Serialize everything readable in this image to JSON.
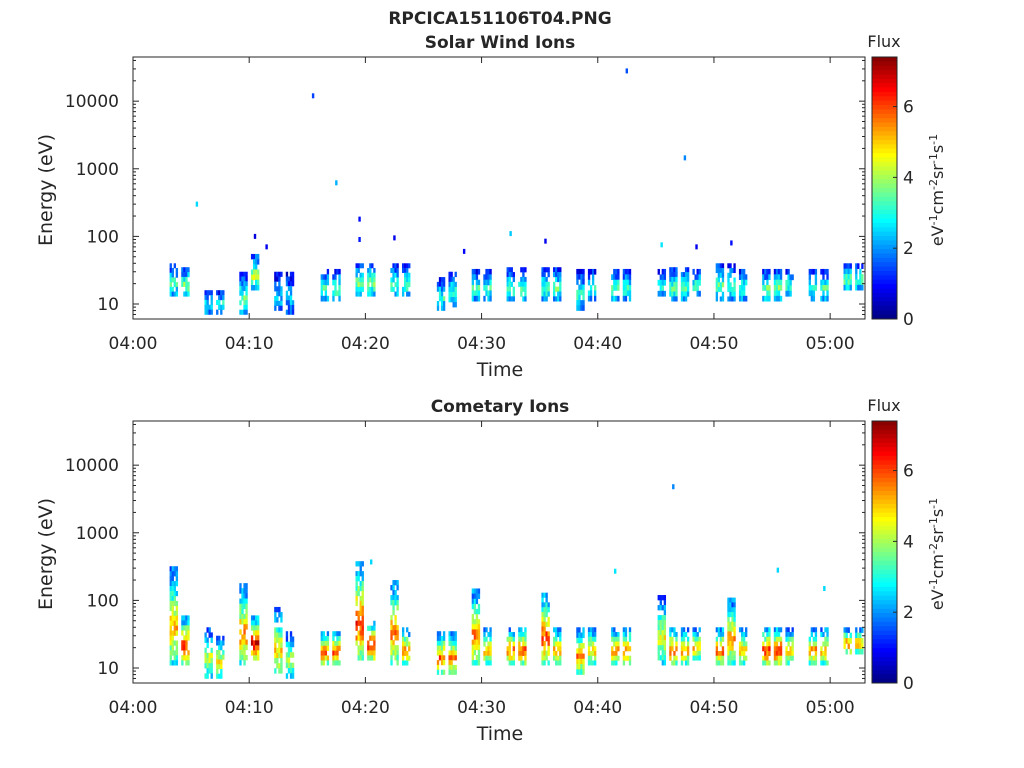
{
  "figure_title": "RPCICA151106T04.PNG",
  "chart_data": [
    {
      "type": "heatmap",
      "title": "Solar Wind Ions",
      "xlabel": "Time",
      "ylabel": "Energy (eV)",
      "x_ticks": [
        "04:00",
        "04:10",
        "04:20",
        "04:30",
        "04:40",
        "04:50",
        "05:00"
      ],
      "y_ticks": [
        "10",
        "100",
        "1000",
        "10000"
      ],
      "xlim": [
        "04:00",
        "05:03"
      ],
      "ylim": [
        6,
        45000
      ],
      "y_scale": "log",
      "colorbar": {
        "label": "Flux",
        "unit": "eV-1cm-2sr-1s-1",
        "ticks": [
          "0",
          "2",
          "4",
          "6"
        ],
        "range": [
          0,
          7.4
        ],
        "colormap": "jet"
      },
      "bursts": [
        {
          "t": "04:03",
          "emin": 13,
          "emax": 40,
          "level": 3.4
        },
        {
          "t": "04:04",
          "emin": 13,
          "emax": 35,
          "level": 3.9
        },
        {
          "t": "04:06",
          "emin": 7,
          "emax": 16,
          "level": 3.0
        },
        {
          "t": "04:07",
          "emin": 7,
          "emax": 16,
          "level": 3.2
        },
        {
          "t": "04:09",
          "emin": 7,
          "emax": 30,
          "level": 3.5
        },
        {
          "t": "04:10",
          "emin": 16,
          "emax": 55,
          "level": 4.2
        },
        {
          "t": "04:12",
          "emin": 8,
          "emax": 30,
          "level": 2.6
        },
        {
          "t": "04:13",
          "emin": 7,
          "emax": 30,
          "level": 2.4
        },
        {
          "t": "04:16",
          "emin": 11,
          "emax": 33,
          "level": 3.4
        },
        {
          "t": "04:17",
          "emin": 11,
          "emax": 33,
          "level": 3.6
        },
        {
          "t": "04:19",
          "emin": 13,
          "emax": 40,
          "level": 3.8
        },
        {
          "t": "04:20",
          "emin": 13,
          "emax": 40,
          "level": 3.9
        },
        {
          "t": "04:22",
          "emin": 13,
          "emax": 40,
          "level": 3.4
        },
        {
          "t": "04:23",
          "emin": 13,
          "emax": 40,
          "level": 3.6
        },
        {
          "t": "04:26",
          "emin": 8,
          "emax": 25,
          "level": 3.2
        },
        {
          "t": "04:27",
          "emin": 9,
          "emax": 30,
          "level": 3.5
        },
        {
          "t": "04:29",
          "emin": 11,
          "emax": 33,
          "level": 3.3
        },
        {
          "t": "04:30",
          "emin": 11,
          "emax": 33,
          "level": 3.4
        },
        {
          "t": "04:32",
          "emin": 11,
          "emax": 35,
          "level": 3.5
        },
        {
          "t": "04:33",
          "emin": 11,
          "emax": 35,
          "level": 3.6
        },
        {
          "t": "04:35",
          "emin": 11,
          "emax": 35,
          "level": 3.4
        },
        {
          "t": "04:36",
          "emin": 11,
          "emax": 35,
          "level": 3.5
        },
        {
          "t": "04:38",
          "emin": 8,
          "emax": 33,
          "level": 3.1
        },
        {
          "t": "04:39",
          "emin": 11,
          "emax": 33,
          "level": 3.3
        },
        {
          "t": "04:41",
          "emin": 11,
          "emax": 33,
          "level": 3.5
        },
        {
          "t": "04:42",
          "emin": 11,
          "emax": 33,
          "level": 3.4
        },
        {
          "t": "04:45",
          "emin": 13,
          "emax": 33,
          "level": 3.0
        },
        {
          "t": "04:46",
          "emin": 11,
          "emax": 35,
          "level": 3.5
        },
        {
          "t": "04:47",
          "emin": 11,
          "emax": 35,
          "level": 3.4
        },
        {
          "t": "04:48",
          "emin": 13,
          "emax": 33,
          "level": 3.3
        },
        {
          "t": "04:50",
          "emin": 11,
          "emax": 40,
          "level": 3.6
        },
        {
          "t": "04:51",
          "emin": 11,
          "emax": 40,
          "level": 3.4
        },
        {
          "t": "04:52",
          "emin": 11,
          "emax": 33,
          "level": 3.3
        },
        {
          "t": "04:54",
          "emin": 11,
          "emax": 33,
          "level": 3.7
        },
        {
          "t": "04:55",
          "emin": 11,
          "emax": 33,
          "level": 3.8
        },
        {
          "t": "04:56",
          "emin": 13,
          "emax": 33,
          "level": 3.5
        },
        {
          "t": "04:58",
          "emin": 11,
          "emax": 33,
          "level": 3.3
        },
        {
          "t": "04:59",
          "emin": 11,
          "emax": 33,
          "level": 3.4
        },
        {
          "t": "05:01",
          "emin": 16,
          "emax": 40,
          "level": 3.6
        },
        {
          "t": "05:02",
          "emin": 16,
          "emax": 40,
          "level": 3.5
        }
      ],
      "points": [
        {
          "t": "04:05",
          "e": 300,
          "level": 2.5
        },
        {
          "t": "04:10",
          "e": 100,
          "level": 0.7
        },
        {
          "t": "04:11",
          "e": 70,
          "level": 0.8
        },
        {
          "t": "04:15",
          "e": 12000,
          "level": 1.4
        },
        {
          "t": "04:17",
          "e": 620,
          "level": 2.2
        },
        {
          "t": "04:19",
          "e": 180,
          "level": 1.0
        },
        {
          "t": "04:19",
          "e": 90,
          "level": 1.1
        },
        {
          "t": "04:22",
          "e": 95,
          "level": 0.8
        },
        {
          "t": "04:28",
          "e": 60,
          "level": 0.9
        },
        {
          "t": "04:32",
          "e": 110,
          "level": 2.4
        },
        {
          "t": "04:35",
          "e": 85,
          "level": 0.8
        },
        {
          "t": "04:42",
          "e": 28000,
          "level": 1.5
        },
        {
          "t": "04:45",
          "e": 75,
          "level": 2.6
        },
        {
          "t": "04:47",
          "e": 1450,
          "level": 1.9
        },
        {
          "t": "04:48",
          "e": 70,
          "level": 0.8
        },
        {
          "t": "04:51",
          "e": 80,
          "level": 1.0
        }
      ]
    },
    {
      "type": "heatmap",
      "title": "Cometary Ions",
      "xlabel": "Time",
      "ylabel": "Energy (eV)",
      "x_ticks": [
        "04:00",
        "04:10",
        "04:20",
        "04:30",
        "04:40",
        "04:50",
        "05:00"
      ],
      "y_ticks": [
        "10",
        "100",
        "1000",
        "10000"
      ],
      "xlim": [
        "04:00",
        "05:03"
      ],
      "ylim": [
        6,
        45000
      ],
      "y_scale": "log",
      "colorbar": {
        "label": "Flux",
        "unit": "eV-1cm-2sr-1s-1",
        "ticks": [
          "0",
          "2",
          "4",
          "6"
        ],
        "range": [
          0,
          7.4
        ],
        "colormap": "jet"
      },
      "bursts": [
        {
          "t": "04:03",
          "emin": 11,
          "emax": 320,
          "level": 5.2
        },
        {
          "t": "04:04",
          "emin": 11,
          "emax": 60,
          "level": 6.3
        },
        {
          "t": "04:06",
          "emin": 7,
          "emax": 40,
          "level": 4.4
        },
        {
          "t": "04:07",
          "emin": 7,
          "emax": 30,
          "level": 4.7
        },
        {
          "t": "04:09",
          "emin": 11,
          "emax": 180,
          "level": 5.6
        },
        {
          "t": "04:10",
          "emin": 13,
          "emax": 60,
          "level": 6.8
        },
        {
          "t": "04:12",
          "emin": 7,
          "emax": 80,
          "level": 5.0
        },
        {
          "t": "04:13",
          "emin": 7,
          "emax": 35,
          "level": 4.4
        },
        {
          "t": "04:16",
          "emin": 11,
          "emax": 35,
          "level": 6.1
        },
        {
          "t": "04:17",
          "emin": 11,
          "emax": 35,
          "level": 6.0
        },
        {
          "t": "04:19",
          "emin": 13,
          "emax": 380,
          "level": 6.4
        },
        {
          "t": "04:20",
          "emin": 13,
          "emax": 50,
          "level": 6.8
        },
        {
          "t": "04:22",
          "emin": 11,
          "emax": 200,
          "level": 5.8
        },
        {
          "t": "04:23",
          "emin": 11,
          "emax": 40,
          "level": 5.5
        },
        {
          "t": "04:26",
          "emin": 8,
          "emax": 35,
          "level": 5.8
        },
        {
          "t": "04:27",
          "emin": 8,
          "emax": 35,
          "level": 5.6
        },
        {
          "t": "04:29",
          "emin": 11,
          "emax": 150,
          "level": 5.8
        },
        {
          "t": "04:30",
          "emin": 11,
          "emax": 40,
          "level": 5.3
        },
        {
          "t": "04:32",
          "emin": 11,
          "emax": 40,
          "level": 5.9
        },
        {
          "t": "04:33",
          "emin": 11,
          "emax": 40,
          "level": 6.2
        },
        {
          "t": "04:35",
          "emin": 11,
          "emax": 130,
          "level": 6.2
        },
        {
          "t": "04:36",
          "emin": 11,
          "emax": 40,
          "level": 5.5
        },
        {
          "t": "04:38",
          "emin": 8,
          "emax": 40,
          "level": 5.6
        },
        {
          "t": "04:39",
          "emin": 11,
          "emax": 40,
          "level": 5.2
        },
        {
          "t": "04:41",
          "emin": 11,
          "emax": 40,
          "level": 5.6
        },
        {
          "t": "04:42",
          "emin": 11,
          "emax": 40,
          "level": 5.9
        },
        {
          "t": "04:45",
          "emin": 11,
          "emax": 120,
          "level": 4.6
        },
        {
          "t": "04:46",
          "emin": 11,
          "emax": 40,
          "level": 6.0
        },
        {
          "t": "04:47",
          "emin": 11,
          "emax": 40,
          "level": 5.5
        },
        {
          "t": "04:48",
          "emin": 13,
          "emax": 40,
          "level": 5.2
        },
        {
          "t": "04:50",
          "emin": 11,
          "emax": 40,
          "level": 6.0
        },
        {
          "t": "04:51",
          "emin": 11,
          "emax": 110,
          "level": 5.4
        },
        {
          "t": "04:52",
          "emin": 11,
          "emax": 40,
          "level": 5.3
        },
        {
          "t": "04:54",
          "emin": 11,
          "emax": 40,
          "level": 6.4
        },
        {
          "t": "04:55",
          "emin": 11,
          "emax": 40,
          "level": 6.6
        },
        {
          "t": "04:56",
          "emin": 11,
          "emax": 40,
          "level": 5.2
        },
        {
          "t": "04:58",
          "emin": 11,
          "emax": 40,
          "level": 5.6
        },
        {
          "t": "04:59",
          "emin": 11,
          "emax": 40,
          "level": 5.3
        },
        {
          "t": "05:01",
          "emin": 16,
          "emax": 40,
          "level": 5.8
        },
        {
          "t": "05:02",
          "emin": 16,
          "emax": 40,
          "level": 5.4
        }
      ],
      "points": [
        {
          "t": "04:20",
          "e": 370,
          "level": 2.5
        },
        {
          "t": "04:41",
          "e": 270,
          "level": 2.6
        },
        {
          "t": "04:46",
          "e": 4800,
          "level": 1.9
        },
        {
          "t": "04:55",
          "e": 280,
          "level": 2.5
        },
        {
          "t": "04:59",
          "e": 150,
          "level": 2.5
        }
      ]
    }
  ]
}
